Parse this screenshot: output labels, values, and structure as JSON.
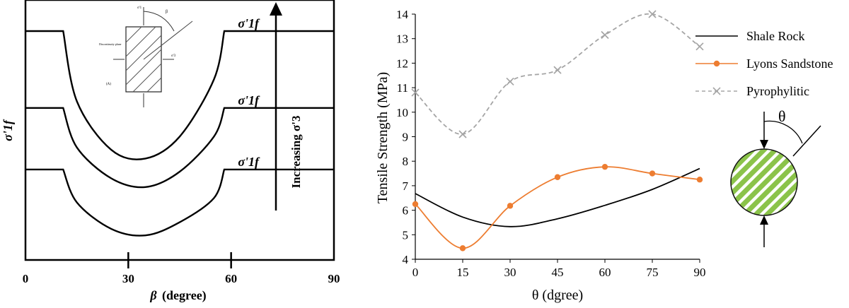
{
  "chart_data": [
    {
      "type": "line",
      "panel": "left",
      "xlabel_symbol": "β",
      "xlabel_unit": "(degree)",
      "ylabel": "σ'1f",
      "xlim": [
        0,
        90
      ],
      "xticks": [
        "0",
        "30",
        "60",
        "90"
      ],
      "curve_labels": [
        "σ'1f",
        "σ'1f",
        "σ'1f"
      ],
      "arrow_label": "Increasing σ'3",
      "inset_labels": [
        "σ'1",
        "β",
        "Discontinuity plane",
        "σ'3",
        "(A)"
      ],
      "series": [
        {
          "description": "highest confining pressure",
          "x": [
            0,
            11,
            15,
            25,
            35,
            45,
            55,
            58,
            90
          ],
          "y": [
            1.0,
            1.0,
            0.68,
            0.46,
            0.42,
            0.52,
            0.78,
            1.0,
            1.0
          ]
        },
        {
          "description": "middle confining pressure",
          "x": [
            0,
            11,
            15,
            25,
            35,
            45,
            55,
            58,
            90
          ],
          "y": [
            0.65,
            0.65,
            0.47,
            0.33,
            0.29,
            0.36,
            0.52,
            0.65,
            0.65
          ]
        },
        {
          "description": "lowest confining pressure",
          "x": [
            0,
            11,
            15,
            25,
            35,
            45,
            55,
            58,
            90
          ],
          "y": [
            0.37,
            0.37,
            0.22,
            0.1,
            0.07,
            0.13,
            0.24,
            0.37,
            0.37
          ]
        }
      ]
    },
    {
      "type": "line",
      "panel": "right",
      "xlabel": "θ (dgree)",
      "ylabel": "Tensile Strength (MPa)",
      "xlim": [
        0,
        90
      ],
      "ylim": [
        4,
        14
      ],
      "xticks": [
        0,
        15,
        30,
        45,
        60,
        75,
        90
      ],
      "yticks": [
        4,
        5,
        6,
        7,
        8,
        9,
        10,
        11,
        12,
        13,
        14
      ],
      "legend_position": "top-right",
      "grid": false,
      "series": [
        {
          "name": "Shale Rock",
          "color": "#000000",
          "style": "solid",
          "marker": "none",
          "x": [
            0,
            15,
            30,
            45,
            60,
            75,
            90
          ],
          "y": [
            6.68,
            5.72,
            5.33,
            5.65,
            6.2,
            6.85,
            7.7
          ]
        },
        {
          "name": "Lyons Sandstone",
          "color": "#ED7D31",
          "style": "solid",
          "marker": "circle",
          "x": [
            0,
            15,
            30,
            45,
            60,
            75,
            90
          ],
          "y": [
            6.25,
            4.45,
            6.18,
            7.35,
            7.77,
            7.5,
            7.25
          ]
        },
        {
          "name": "Pyrophylitic",
          "color": "#A5A5A5",
          "style": "dashed",
          "marker": "x",
          "x": [
            0,
            15,
            30,
            45,
            60,
            75,
            90
          ],
          "y": [
            10.8,
            9.1,
            11.25,
            11.72,
            13.15,
            14.0,
            12.68
          ]
        }
      ],
      "diagram_label": "θ"
    }
  ]
}
